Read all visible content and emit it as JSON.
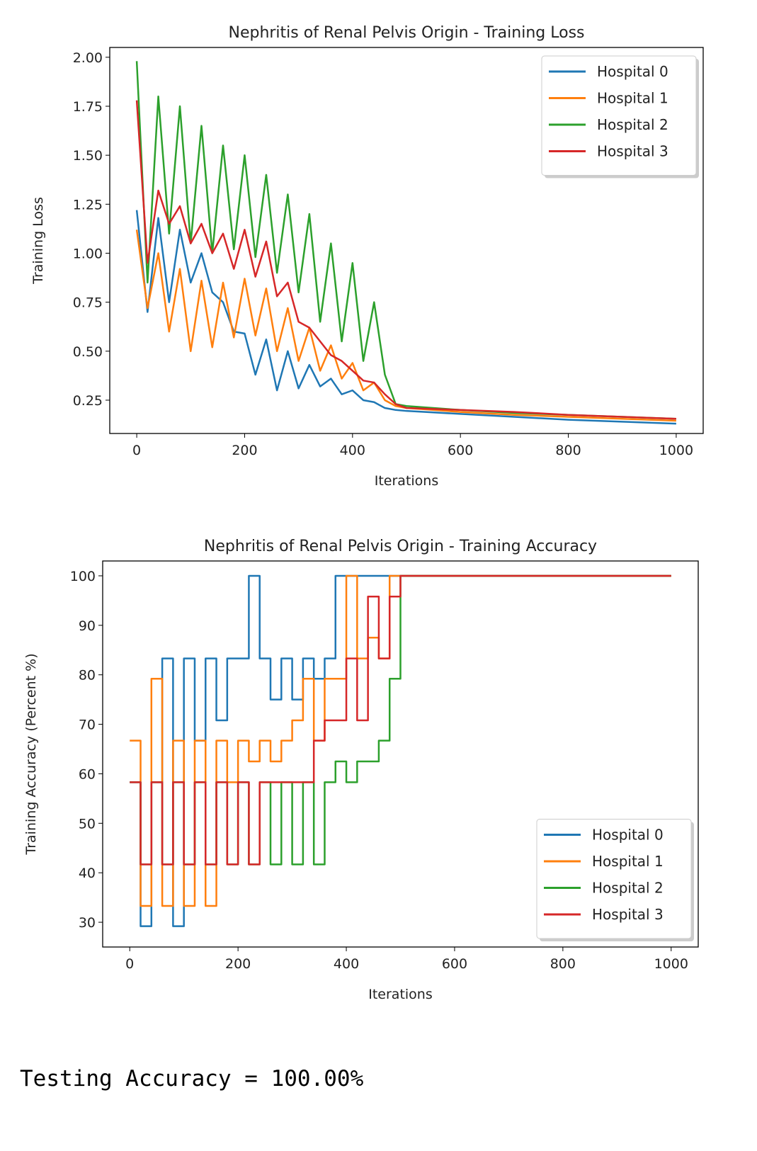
{
  "chart_data": [
    {
      "type": "line",
      "title": "Nephritis of Renal Pelvis Origin - Training Loss",
      "xlabel": "Iterations",
      "ylabel": "Training Loss",
      "x": [
        0,
        20,
        40,
        60,
        80,
        100,
        120,
        140,
        160,
        180,
        200,
        220,
        240,
        260,
        280,
        300,
        320,
        340,
        360,
        380,
        400,
        420,
        440,
        460,
        480,
        500,
        600,
        700,
        800,
        900,
        1000
      ],
      "series": [
        {
          "name": "Hospital 0",
          "color": "#1f77b4",
          "values": [
            1.22,
            0.7,
            1.18,
            0.75,
            1.12,
            0.85,
            1.0,
            0.8,
            0.75,
            0.6,
            0.59,
            0.38,
            0.56,
            0.3,
            0.5,
            0.31,
            0.43,
            0.32,
            0.36,
            0.28,
            0.3,
            0.25,
            0.24,
            0.21,
            0.2,
            0.195,
            0.18,
            0.165,
            0.15,
            0.14,
            0.13
          ]
        },
        {
          "name": "Hospital 1",
          "color": "#ff7f0e",
          "values": [
            1.12,
            0.72,
            1.0,
            0.6,
            0.92,
            0.5,
            0.86,
            0.52,
            0.85,
            0.57,
            0.87,
            0.58,
            0.82,
            0.5,
            0.72,
            0.45,
            0.62,
            0.4,
            0.53,
            0.36,
            0.44,
            0.3,
            0.34,
            0.25,
            0.22,
            0.21,
            0.19,
            0.175,
            0.165,
            0.155,
            0.145
          ]
        },
        {
          "name": "Hospital 2",
          "color": "#2ca02c",
          "values": [
            1.98,
            0.85,
            1.8,
            1.1,
            1.75,
            1.05,
            1.65,
            1.0,
            1.55,
            1.02,
            1.5,
            0.98,
            1.4,
            0.9,
            1.3,
            0.8,
            1.2,
            0.65,
            1.05,
            0.55,
            0.95,
            0.45,
            0.75,
            0.38,
            0.23,
            0.22,
            0.2,
            0.185,
            0.175,
            0.165,
            0.155
          ]
        },
        {
          "name": "Hospital 3",
          "color": "#d62728",
          "values": [
            1.78,
            0.95,
            1.32,
            1.15,
            1.24,
            1.05,
            1.15,
            1.0,
            1.1,
            0.92,
            1.12,
            0.88,
            1.06,
            0.78,
            0.85,
            0.65,
            0.62,
            0.55,
            0.48,
            0.45,
            0.4,
            0.35,
            0.34,
            0.28,
            0.23,
            0.21,
            0.2,
            0.19,
            0.175,
            0.165,
            0.155
          ]
        }
      ],
      "xlim": [
        -50,
        1050
      ],
      "xticks": [
        0,
        200,
        400,
        600,
        800,
        1000
      ],
      "ylim": [
        0.08,
        2.05
      ],
      "yticks": [
        0.25,
        {
          "value": 0.5,
          "label": "0.50"
        },
        0.75,
        {
          "value": 1,
          "label": "1.00"
        },
        1.25,
        {
          "value": 1.5,
          "label": "1.50"
        },
        1.75,
        {
          "value": 2,
          "label": "2.00"
        }
      ],
      "step": false,
      "legend": "upper right"
    },
    {
      "type": "line",
      "title": "Nephritis of Renal Pelvis Origin - Training Accuracy",
      "xlabel": "Iterations",
      "ylabel": "Training Accuracy (Percent %)",
      "x": [
        0,
        20,
        40,
        60,
        80,
        100,
        120,
        140,
        160,
        180,
        200,
        220,
        240,
        260,
        280,
        300,
        320,
        340,
        360,
        380,
        400,
        420,
        440,
        460,
        480,
        500,
        600,
        700,
        800,
        900,
        1000
      ],
      "series": [
        {
          "name": "Hospital 0",
          "color": "#1f77b4",
          "values": [
            58.3,
            29.2,
            58.3,
            83.3,
            29.2,
            83.3,
            66.7,
            83.3,
            70.8,
            83.3,
            83.3,
            100,
            83.3,
            75,
            83.3,
            75,
            83.3,
            79.2,
            83.3,
            100,
            100,
            100,
            100,
            100,
            100,
            100,
            100,
            100,
            100,
            100,
            100
          ]
        },
        {
          "name": "Hospital 1",
          "color": "#ff7f0e",
          "values": [
            66.7,
            33.3,
            79.2,
            33.3,
            66.7,
            33.3,
            66.7,
            33.3,
            66.7,
            58.3,
            66.7,
            62.5,
            66.7,
            62.5,
            66.7,
            70.8,
            79.2,
            66.7,
            79.2,
            79.2,
            100,
            83.3,
            87.5,
            83.3,
            100,
            100,
            100,
            100,
            100,
            100,
            100
          ]
        },
        {
          "name": "Hospital 2",
          "color": "#2ca02c",
          "values": [
            58.3,
            41.7,
            58.3,
            41.7,
            58.3,
            41.7,
            58.3,
            41.7,
            58.3,
            41.7,
            58.3,
            41.7,
            58.3,
            41.7,
            58.3,
            41.7,
            58.3,
            41.7,
            58.3,
            62.5,
            58.3,
            62.5,
            62.5,
            66.7,
            79.2,
            100,
            100,
            100,
            100,
            100,
            100
          ]
        },
        {
          "name": "Hospital 3",
          "color": "#d62728",
          "values": [
            58.3,
            41.7,
            58.3,
            41.7,
            58.3,
            41.7,
            58.3,
            41.7,
            58.3,
            41.7,
            58.3,
            41.7,
            58.3,
            58.3,
            58.3,
            58.3,
            58.3,
            66.7,
            70.8,
            70.8,
            83.3,
            70.8,
            95.8,
            83.3,
            95.8,
            100,
            100,
            100,
            100,
            100,
            100
          ]
        }
      ],
      "xlim": [
        -50,
        1050
      ],
      "xticks": [
        0,
        200,
        400,
        600,
        800,
        1000
      ],
      "ylim": [
        25,
        103
      ],
      "yticks": [
        30,
        40,
        50,
        60,
        70,
        80,
        90,
        100
      ],
      "step": true,
      "legend": "lower right"
    }
  ],
  "output_text": "Testing Accuracy = 100.00%"
}
